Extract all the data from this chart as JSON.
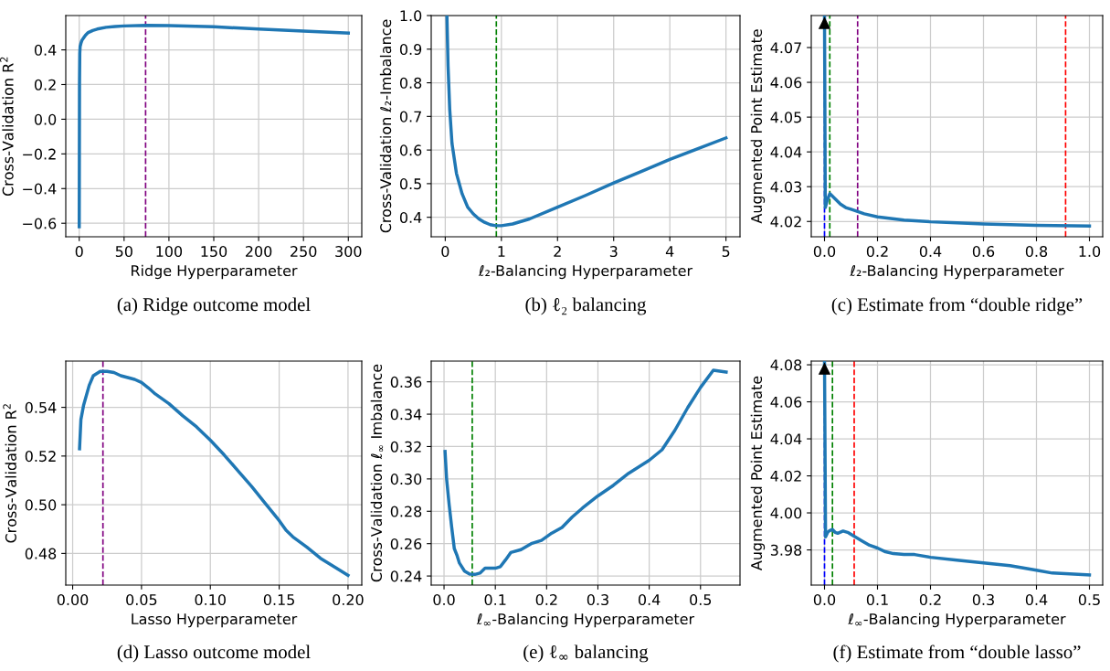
{
  "chart_data": [
    {
      "type": "line",
      "xlabel": "Ridge Hyperparameter",
      "ylabel": "Cross-Validation R$^{2}$",
      "annotations": [
        "(a) Ridge outcome model"
      ],
      "xlim": [
        -15,
        315
      ],
      "xticks": [
        0,
        50,
        100,
        150,
        200,
        250,
        300
      ],
      "ylim": [
        -0.678,
        0.598
      ],
      "yticks": [
        {
          "value": -0.6,
          "label": "−0.6"
        },
        {
          "value": -0.4,
          "label": "−0.4"
        },
        {
          "value": -0.2,
          "label": "−0.2"
        },
        {
          "value": 0,
          "label": "0.0"
        },
        0.2,
        0.4
      ],
      "grid": true,
      "line_style": "solid",
      "series": [
        {
          "color": "#1f77b4",
          "x": [
            0,
            0.3,
            0.6,
            1,
            2,
            3,
            5,
            7,
            10,
            15,
            20,
            30,
            40,
            50,
            75,
            100,
            150,
            200,
            250,
            300
          ],
          "values": [
            -0.62,
            0.2,
            0.38,
            0.42,
            0.44,
            0.455,
            0.47,
            0.485,
            0.5,
            0.512,
            0.52,
            0.53,
            0.535,
            0.538,
            0.541,
            0.54,
            0.533,
            0.52,
            0.508,
            0.497
          ]
        }
      ],
      "ref_lines": [
        {
          "axis": "x",
          "value": 74,
          "color": "#800080",
          "line_style": "dashed"
        }
      ]
    },
    {
      "type": "line",
      "xlabel": "ℓ₂-Balancing Hyperparameter",
      "ylabel": "Cross-Validation ℓ₂-Imbalance",
      "annotations": [
        "(b) ℓ₂ balancing"
      ],
      "xlim": [
        -0.25,
        5.25
      ],
      "xticks": [
        0,
        1,
        2,
        3,
        4,
        5
      ],
      "ylim": [
        0.342,
        1.0
      ],
      "yticks": [
        0.4,
        0.5,
        0.6,
        0.7,
        0.8,
        0.9,
        {
          "value": 1,
          "label": "1.0"
        }
      ],
      "grid": true,
      "line_style": "solid",
      "series": [
        {
          "color": "#1f77b4",
          "x": [
            0.03,
            0.05,
            0.08,
            0.12,
            0.2,
            0.3,
            0.4,
            0.5,
            0.6,
            0.7,
            0.8,
            0.9,
            1.0,
            1.2,
            1.5,
            2.0,
            2.5,
            3.0,
            3.5,
            4.0,
            4.5,
            5.0
          ],
          "values": [
            0.998,
            0.85,
            0.72,
            0.62,
            0.53,
            0.47,
            0.43,
            0.41,
            0.395,
            0.385,
            0.378,
            0.375,
            0.375,
            0.38,
            0.395,
            0.43,
            0.465,
            0.502,
            0.537,
            0.572,
            0.604,
            0.636
          ]
        }
      ],
      "ref_lines": [
        {
          "axis": "x",
          "value": 0.91,
          "color": "#008000",
          "line_style": "dashed"
        }
      ]
    },
    {
      "type": "line",
      "xlabel": "ℓ₂-Balancing Hyperparameter",
      "ylabel": "Augmented Point Estimate",
      "annotations": [
        "(c) Estimate from “double ridge”"
      ],
      "xlim": [
        -0.05,
        1.05
      ],
      "xticks": [
        {
          "value": 0,
          "label": "0.0"
        },
        0.2,
        0.4,
        0.6,
        0.8,
        {
          "value": 1,
          "label": "1.0"
        }
      ],
      "ylim": [
        4.0156,
        4.0792
      ],
      "yticks": [
        4.02,
        4.03,
        4.04,
        4.05,
        4.06,
        4.07
      ],
      "grid": true,
      "line_style": "solid",
      "series": [
        {
          "color": "#1f77b4",
          "x": [
            0.0,
            0.003,
            0.01,
            0.02,
            0.04,
            0.06,
            0.08,
            0.1,
            0.12,
            0.15,
            0.2,
            0.3,
            0.4,
            0.5,
            0.6,
            0.8,
            1.0
          ],
          "values": [
            4.0792,
            4.024,
            4.026,
            4.028,
            4.0265,
            4.025,
            4.024,
            4.0235,
            4.023,
            4.0222,
            4.0213,
            4.0204,
            4.0199,
            4.0196,
            4.0193,
            4.0189,
            4.0187
          ]
        }
      ],
      "ref_lines": [
        {
          "axis": "x",
          "value": 0.0,
          "color": "#0000ff",
          "line_style": "dashed"
        },
        {
          "axis": "x",
          "value": 0.02,
          "color": "#008000",
          "line_style": "dashed"
        },
        {
          "axis": "x",
          "value": 0.125,
          "color": "#800080",
          "line_style": "dashed"
        },
        {
          "axis": "x",
          "value": 0.91,
          "color": "#ff0000",
          "line_style": "dashed"
        }
      ]
    },
    {
      "type": "line",
      "xlabel": "Lasso Hyperparameter",
      "ylabel": "Cross-Validation R$^{2}$",
      "annotations": [
        "(d) Lasso outcome model"
      ],
      "xlim": [
        -0.005,
        0.21
      ],
      "xticks": [
        {
          "value": 0.0,
          "label": "0.00"
        },
        {
          "value": 0.05,
          "label": "0.05"
        },
        {
          "value": 0.1,
          "label": "0.10"
        },
        {
          "value": 0.15,
          "label": "0.15"
        },
        {
          "value": 0.2,
          "label": "0.20"
        }
      ],
      "ylim": [
        0.467,
        0.559
      ],
      "yticks": [
        0.48,
        {
          "value": 0.5,
          "label": "0.50"
        },
        0.52,
        0.54
      ],
      "grid": true,
      "line_style": "solid",
      "series": [
        {
          "color": "#1f77b4",
          "x": [
            0.005,
            0.006,
            0.008,
            0.012,
            0.015,
            0.02,
            0.025,
            0.03,
            0.035,
            0.045,
            0.05,
            0.055,
            0.06,
            0.07,
            0.08,
            0.09,
            0.1,
            0.11,
            0.12,
            0.13,
            0.14,
            0.15,
            0.155,
            0.16,
            0.17,
            0.18,
            0.19,
            0.2
          ],
          "values": [
            0.523,
            0.535,
            0.541,
            0.549,
            0.553,
            0.5548,
            0.5548,
            0.5543,
            0.553,
            0.5515,
            0.5502,
            0.548,
            0.5455,
            0.5415,
            0.5365,
            0.532,
            0.5265,
            0.5205,
            0.514,
            0.5075,
            0.5005,
            0.4935,
            0.4895,
            0.4868,
            0.4826,
            0.478,
            0.4745,
            0.471
          ]
        }
      ],
      "ref_lines": [
        {
          "axis": "x",
          "value": 0.022,
          "color": "#800080",
          "line_style": "dashed"
        }
      ]
    },
    {
      "type": "line",
      "xlabel": "ℓ$_{∞}$-Balancing Hyperparameter",
      "ylabel": "Cross-Validation ℓ$_{∞}$ Imbalance",
      "annotations": [
        "(e) ℓ$_{∞}$ balancing"
      ],
      "xlim": [
        -0.025,
        0.577
      ],
      "xticks": [
        {
          "value": 0,
          "label": "0.0"
        },
        0.1,
        0.2,
        0.3,
        0.4,
        0.5
      ],
      "ylim": [
        0.2344,
        0.3728
      ],
      "yticks": [
        0.24,
        0.26,
        0.28,
        {
          "value": 0.3,
          "label": "0.30"
        },
        0.32,
        0.34,
        0.36
      ],
      "grid": true,
      "line_style": "solid",
      "series": [
        {
          "color": "#1f77b4",
          "x": [
            0.002,
            0.005,
            0.01,
            0.015,
            0.02,
            0.025,
            0.03,
            0.04,
            0.05,
            0.06,
            0.07,
            0.08,
            0.09,
            0.1,
            0.11,
            0.12,
            0.13,
            0.15,
            0.17,
            0.19,
            0.21,
            0.23,
            0.25,
            0.27,
            0.3,
            0.33,
            0.36,
            0.4,
            0.425,
            0.45,
            0.475,
            0.5,
            0.525,
            0.55
          ],
          "values": [
            0.317,
            0.3,
            0.284,
            0.27,
            0.257,
            0.253,
            0.248,
            0.243,
            0.2412,
            0.241,
            0.2418,
            0.2448,
            0.2448,
            0.2448,
            0.2458,
            0.25,
            0.2545,
            0.2563,
            0.26,
            0.262,
            0.2665,
            0.27,
            0.2765,
            0.282,
            0.2895,
            0.296,
            0.3035,
            0.3115,
            0.318,
            0.33,
            0.344,
            0.3565,
            0.3672,
            0.366
          ]
        }
      ],
      "ref_lines": [
        {
          "axis": "x",
          "value": 0.055,
          "color": "#008000",
          "line_style": "dashed"
        }
      ]
    },
    {
      "type": "line",
      "xlabel": "ℓ$_{∞}$-Balancing Hyperparameter",
      "ylabel": "Augmented Point Estimate",
      "annotations": [
        "(f) Estimate from “double lasso”"
      ],
      "xlim": [
        -0.025,
        0.525
      ],
      "xticks": [
        {
          "value": 0,
          "label": "0.0"
        },
        0.1,
        0.2,
        0.3,
        0.4,
        0.5
      ],
      "ylim": [
        3.961,
        4.082
      ],
      "yticks": [
        3.98,
        {
          "value": 4.0,
          "label": "4.00"
        },
        4.02,
        4.04,
        4.06,
        4.08
      ],
      "grid": true,
      "line_style": "solid",
      "series": [
        {
          "color": "#1f77b4",
          "x": [
            0.0,
            0.002,
            0.006,
            0.01,
            0.015,
            0.02,
            0.025,
            0.035,
            0.045,
            0.055,
            0.07,
            0.085,
            0.1,
            0.115,
            0.13,
            0.15,
            0.17,
            0.2,
            0.25,
            0.3,
            0.35,
            0.4,
            0.43,
            0.5
          ],
          "values": [
            4.082,
            3.987,
            3.9895,
            3.9905,
            3.991,
            3.9895,
            3.989,
            3.9902,
            3.9893,
            3.9875,
            3.985,
            3.9825,
            3.981,
            3.979,
            3.978,
            3.9775,
            3.9775,
            3.976,
            3.9745,
            3.973,
            3.9715,
            3.969,
            3.9675,
            3.9665
          ]
        }
      ],
      "ref_lines": [
        {
          "axis": "x",
          "value": 0.0,
          "color": "#0000ff",
          "line_style": "dashed"
        },
        {
          "axis": "x",
          "value": 0.015,
          "color": "#008000",
          "line_style": "dashed"
        },
        {
          "axis": "x",
          "value": 0.056,
          "color": "#ff0000",
          "line_style": "dashed"
        }
      ]
    }
  ]
}
